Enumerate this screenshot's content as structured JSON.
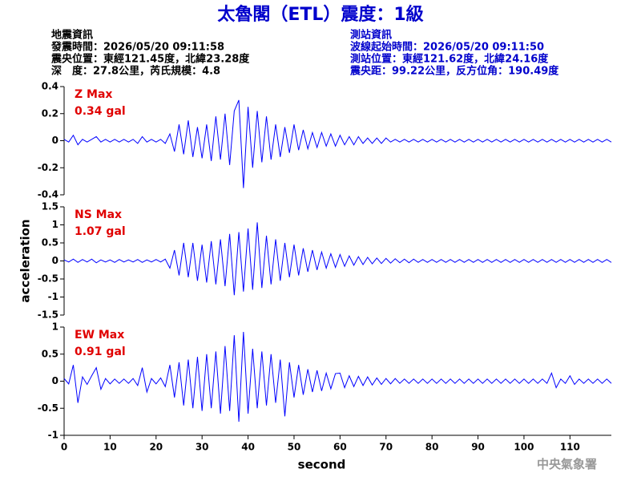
{
  "header": {
    "title": "太魯閣（ETL）震度：1級",
    "quake_info": [
      "地震資訊",
      "發震時間：2026/05/20 09:11:58",
      "震央位置：東經121.45度，北緯23.28度",
      "深　度：27.8公里，芮氏規模：4.8"
    ],
    "station_info": [
      "測站資訊",
      "波線起始時間：2026/05/20 09:11:50",
      "測站位置：東經121.62度，北緯24.16度",
      "震央距：99.22公里，反方位角：190.49度"
    ]
  },
  "footer": "中央氣象署",
  "chart_data": [
    {
      "type": "line",
      "annotation": "Z Max",
      "annotation_value": "0.34 gal",
      "xlim": [
        0,
        119
      ],
      "ylim": [
        -0.4,
        0.4
      ],
      "yticks": [
        0.4,
        0.2,
        0,
        -0.2,
        -0.4
      ],
      "x": [
        0,
        1,
        2,
        3,
        4,
        5,
        6,
        7,
        8,
        9,
        10,
        11,
        12,
        13,
        14,
        15,
        16,
        17,
        18,
        19,
        20,
        21,
        22,
        23,
        24,
        25,
        26,
        27,
        28,
        29,
        30,
        31,
        32,
        33,
        34,
        35,
        36,
        37,
        38,
        39,
        40,
        41,
        42,
        43,
        44,
        45,
        46,
        47,
        48,
        49,
        50,
        51,
        52,
        53,
        54,
        55,
        56,
        57,
        58,
        59,
        60,
        61,
        62,
        63,
        64,
        65,
        66,
        67,
        68,
        69,
        70,
        71,
        72,
        73,
        74,
        75,
        76,
        77,
        78,
        79,
        80,
        81,
        82,
        83,
        84,
        85,
        86,
        87,
        88,
        89,
        90,
        91,
        92,
        93,
        94,
        95,
        96,
        97,
        98,
        99,
        100,
        101,
        102,
        103,
        104,
        105,
        106,
        107,
        108,
        109,
        110,
        111,
        112,
        113,
        114,
        115,
        116,
        117,
        118,
        119
      ],
      "series": [
        {
          "color": "#0000ff",
          "values": [
            0.01,
            -0.01,
            0.04,
            -0.03,
            0.01,
            -0.01,
            0.01,
            0.03,
            -0.01,
            0.01,
            -0.01,
            0.01,
            -0.01,
            0.01,
            -0.01,
            0.01,
            -0.02,
            0.03,
            -0.01,
            0.01,
            -0.01,
            0.01,
            -0.02,
            0.05,
            -0.08,
            0.12,
            -0.1,
            0.15,
            -0.12,
            0.1,
            -0.13,
            0.12,
            -0.15,
            0.18,
            -0.14,
            0.2,
            -0.18,
            0.22,
            0.3,
            -0.35,
            0.25,
            -0.2,
            0.22,
            -0.16,
            0.18,
            -0.14,
            0.12,
            -0.12,
            0.1,
            -0.09,
            0.12,
            -0.07,
            0.08,
            -0.06,
            0.06,
            -0.05,
            0.06,
            -0.04,
            0.05,
            -0.04,
            0.04,
            -0.03,
            0.03,
            -0.03,
            0.03,
            -0.02,
            0.02,
            -0.02,
            0.02,
            -0.02,
            0.02,
            -0.01,
            0.01,
            -0.01,
            0.01,
            -0.01,
            0.01,
            -0.01,
            0.01,
            -0.01,
            0.01,
            -0.01,
            0.01,
            -0.01,
            0.01,
            -0.01,
            0.01,
            -0.01,
            0.01,
            -0.01,
            0.01,
            -0.01,
            0.01,
            -0.01,
            0.01,
            -0.01,
            0.01,
            -0.01,
            0.01,
            -0.01,
            0.01,
            -0.01,
            0.01,
            -0.01,
            0.01,
            -0.01,
            0.01,
            -0.01,
            0.01,
            -0.01,
            0.01,
            -0.01,
            0.01,
            -0.01,
            0.01,
            -0.01,
            0.01,
            -0.01,
            0.01,
            -0.01
          ]
        }
      ]
    },
    {
      "type": "line",
      "annotation": "NS Max",
      "annotation_value": "1.07 gal",
      "y_label": "acceleration",
      "xlim": [
        0,
        119
      ],
      "ylim": [
        -1.5,
        1.5
      ],
      "yticks": [
        1.5,
        1,
        0.5,
        0,
        -0.5,
        -1,
        -1.5
      ],
      "x": [
        0,
        1,
        2,
        3,
        4,
        5,
        6,
        7,
        8,
        9,
        10,
        11,
        12,
        13,
        14,
        15,
        16,
        17,
        18,
        19,
        20,
        21,
        22,
        23,
        24,
        25,
        26,
        27,
        28,
        29,
        30,
        31,
        32,
        33,
        34,
        35,
        36,
        37,
        38,
        39,
        40,
        41,
        42,
        43,
        44,
        45,
        46,
        47,
        48,
        49,
        50,
        51,
        52,
        53,
        54,
        55,
        56,
        57,
        58,
        59,
        60,
        61,
        62,
        63,
        64,
        65,
        66,
        67,
        68,
        69,
        70,
        71,
        72,
        73,
        74,
        75,
        76,
        77,
        78,
        79,
        80,
        81,
        82,
        83,
        84,
        85,
        86,
        87,
        88,
        89,
        90,
        91,
        92,
        93,
        94,
        95,
        96,
        97,
        98,
        99,
        100,
        101,
        102,
        103,
        104,
        105,
        106,
        107,
        108,
        109,
        110,
        111,
        112,
        113,
        114,
        115,
        116,
        117,
        118,
        119
      ],
      "series": [
        {
          "color": "#0000ff",
          "values": [
            0.03,
            -0.03,
            0.05,
            -0.04,
            0.04,
            -0.03,
            0.05,
            -0.05,
            0.03,
            -0.03,
            0.03,
            -0.04,
            0.04,
            -0.03,
            0.03,
            -0.03,
            0.04,
            -0.04,
            0.03,
            -0.03,
            0.04,
            -0.03,
            0.05,
            -0.2,
            0.3,
            -0.4,
            0.5,
            -0.45,
            0.5,
            -0.55,
            0.45,
            -0.6,
            0.55,
            -0.65,
            0.6,
            -0.7,
            0.75,
            -0.95,
            0.8,
            -0.85,
            0.9,
            -0.8,
            1.07,
            -0.75,
            0.7,
            -0.65,
            0.6,
            -0.55,
            0.5,
            -0.45,
            0.45,
            -0.4,
            0.35,
            -0.3,
            0.3,
            -0.25,
            0.25,
            -0.2,
            0.2,
            -0.18,
            0.18,
            -0.15,
            0.14,
            -0.12,
            0.12,
            -0.1,
            0.1,
            -0.08,
            0.08,
            -0.07,
            0.07,
            -0.06,
            0.06,
            -0.05,
            0.05,
            -0.05,
            0.05,
            -0.04,
            0.04,
            -0.04,
            0.04,
            -0.04,
            0.04,
            -0.04,
            0.04,
            -0.04,
            0.04,
            -0.04,
            0.04,
            -0.04,
            0.04,
            -0.04,
            0.04,
            -0.04,
            0.04,
            -0.04,
            0.04,
            -0.04,
            0.04,
            -0.04,
            0.04,
            -0.04,
            0.04,
            -0.04,
            0.04,
            -0.04,
            0.04,
            -0.04,
            0.04,
            -0.04,
            0.04,
            -0.04,
            0.04,
            -0.04,
            0.04,
            -0.04,
            0.04,
            -0.04,
            0.04,
            -0.04
          ]
        }
      ]
    },
    {
      "type": "line",
      "annotation": "EW Max",
      "annotation_value": "0.91 gal",
      "x_label": "second",
      "xlim": [
        0,
        119
      ],
      "xticks": [
        0,
        10,
        20,
        30,
        40,
        50,
        60,
        70,
        80,
        90,
        100,
        110
      ],
      "ylim": [
        -1,
        1
      ],
      "yticks": [
        1,
        0.5,
        0,
        -0.5,
        -1
      ],
      "x": [
        0,
        1,
        2,
        3,
        4,
        5,
        6,
        7,
        8,
        9,
        10,
        11,
        12,
        13,
        14,
        15,
        16,
        17,
        18,
        19,
        20,
        21,
        22,
        23,
        24,
        25,
        26,
        27,
        28,
        29,
        30,
        31,
        32,
        33,
        34,
        35,
        36,
        37,
        38,
        39,
        40,
        41,
        42,
        43,
        44,
        45,
        46,
        47,
        48,
        49,
        50,
        51,
        52,
        53,
        54,
        55,
        56,
        57,
        58,
        59,
        60,
        61,
        62,
        63,
        64,
        65,
        66,
        67,
        68,
        69,
        70,
        71,
        72,
        73,
        74,
        75,
        76,
        77,
        78,
        79,
        80,
        81,
        82,
        83,
        84,
        85,
        86,
        87,
        88,
        89,
        90,
        91,
        92,
        93,
        94,
        95,
        96,
        97,
        98,
        99,
        100,
        101,
        102,
        103,
        104,
        105,
        106,
        107,
        108,
        109,
        110,
        111,
        112,
        113,
        114,
        115,
        116,
        117,
        118,
        119
      ],
      "series": [
        {
          "color": "#0000ff",
          "values": [
            0.05,
            -0.05,
            0.3,
            -0.4,
            0.08,
            -0.06,
            0.1,
            0.25,
            -0.15,
            0.05,
            -0.05,
            0.04,
            -0.04,
            0.04,
            -0.04,
            0.05,
            -0.08,
            0.25,
            -0.2,
            0.05,
            -0.05,
            0.06,
            -0.1,
            0.3,
            -0.3,
            0.35,
            -0.45,
            0.4,
            -0.5,
            0.45,
            -0.55,
            0.5,
            -0.5,
            0.55,
            -0.6,
            0.65,
            -0.55,
            0.85,
            -0.75,
            0.91,
            -0.6,
            0.6,
            -0.5,
            0.55,
            -0.45,
            0.5,
            -0.4,
            0.4,
            -0.65,
            0.35,
            -0.3,
            0.3,
            -0.25,
            0.22,
            -0.2,
            0.2,
            -0.18,
            0.15,
            -0.14,
            0.14,
            0.15,
            -0.12,
            0.1,
            -0.1,
            0.09,
            -0.08,
            0.08,
            -0.07,
            0.06,
            -0.06,
            0.05,
            -0.05,
            0.05,
            -0.04,
            0.04,
            -0.04,
            0.04,
            -0.04,
            0.04,
            -0.04,
            0.04,
            -0.04,
            0.04,
            -0.04,
            0.04,
            -0.04,
            0.04,
            -0.04,
            0.04,
            -0.04,
            0.04,
            -0.04,
            0.04,
            -0.04,
            0.04,
            -0.04,
            0.04,
            -0.04,
            0.04,
            -0.04,
            0.04,
            -0.04,
            0.04,
            -0.04,
            0.04,
            -0.04,
            0.15,
            -0.12,
            0.04,
            -0.04,
            0.1,
            -0.06,
            0.04,
            -0.04,
            0.04,
            -0.04,
            0.04,
            -0.04,
            0.04,
            -0.04
          ]
        }
      ]
    }
  ]
}
